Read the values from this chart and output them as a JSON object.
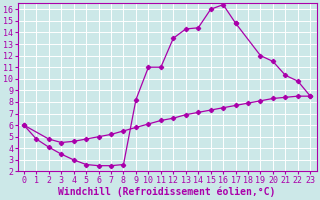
{
  "xlabel": "Windchill (Refroidissement éolien,°C)",
  "bg_color": "#cce8e8",
  "grid_color": "#ffffff",
  "line_color": "#aa00aa",
  "xlim": [
    -0.5,
    23.5
  ],
  "ylim": [
    2,
    16.5
  ],
  "xticks": [
    0,
    1,
    2,
    3,
    4,
    5,
    6,
    7,
    8,
    9,
    10,
    11,
    12,
    13,
    14,
    15,
    16,
    17,
    18,
    19,
    20,
    21,
    22,
    23
  ],
  "yticks": [
    2,
    3,
    4,
    5,
    6,
    7,
    8,
    9,
    10,
    11,
    12,
    13,
    14,
    15,
    16
  ],
  "curve1_x": [
    0,
    1,
    2,
    3,
    4,
    5,
    6,
    7,
    8,
    9,
    10,
    11,
    12,
    13,
    14,
    15,
    16,
    17
  ],
  "curve1_y": [
    6.0,
    4.8,
    4.1,
    3.5,
    3.0,
    2.6,
    2.5,
    2.5,
    2.6,
    8.2,
    11.0,
    11.0,
    13.5,
    14.3,
    14.4,
    16.0,
    16.4,
    14.8
  ],
  "curve2_x": [
    17,
    19,
    20,
    21,
    22,
    23
  ],
  "curve2_y": [
    14.8,
    12.0,
    11.5,
    10.3,
    9.8,
    8.5
  ],
  "curve3_x": [
    0,
    2,
    3,
    4,
    5,
    6,
    7,
    8,
    9,
    10,
    11,
    12,
    13,
    14,
    15,
    16,
    17,
    18,
    19,
    20,
    21,
    22,
    23
  ],
  "curve3_y": [
    6.0,
    4.8,
    4.5,
    4.6,
    4.8,
    5.0,
    5.2,
    5.5,
    5.8,
    6.1,
    6.4,
    6.6,
    6.9,
    7.1,
    7.3,
    7.5,
    7.7,
    7.9,
    8.1,
    8.3,
    8.4,
    8.5,
    8.5
  ],
  "xlabel_fontsize": 7,
  "tick_fontsize": 6
}
